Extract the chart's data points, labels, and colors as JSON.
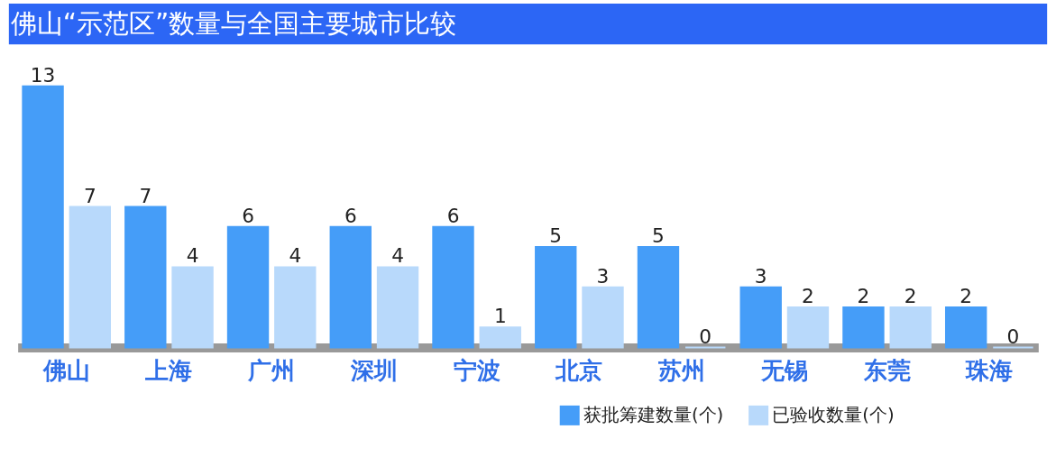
{
  "chart_data": {
    "type": "bar",
    "title": "佛山“示范区”数量与全国主要城市比较",
    "categories": [
      "佛山",
      "上海",
      "广州",
      "深圳",
      "宁波",
      "北京",
      "苏州",
      "无锡",
      "东莞",
      "珠海"
    ],
    "series": [
      {
        "name": "获批筹建数量(个)",
        "color": "#459df8",
        "values": [
          13,
          7,
          6,
          6,
          6,
          5,
          5,
          3,
          2,
          2
        ]
      },
      {
        "name": "已验收数量(个)",
        "color": "#b8d9fb",
        "values": [
          7,
          4,
          4,
          4,
          1,
          3,
          0,
          2,
          2,
          0
        ]
      }
    ],
    "data_labels": true,
    "legend": "bottom right",
    "grid": false
  }
}
